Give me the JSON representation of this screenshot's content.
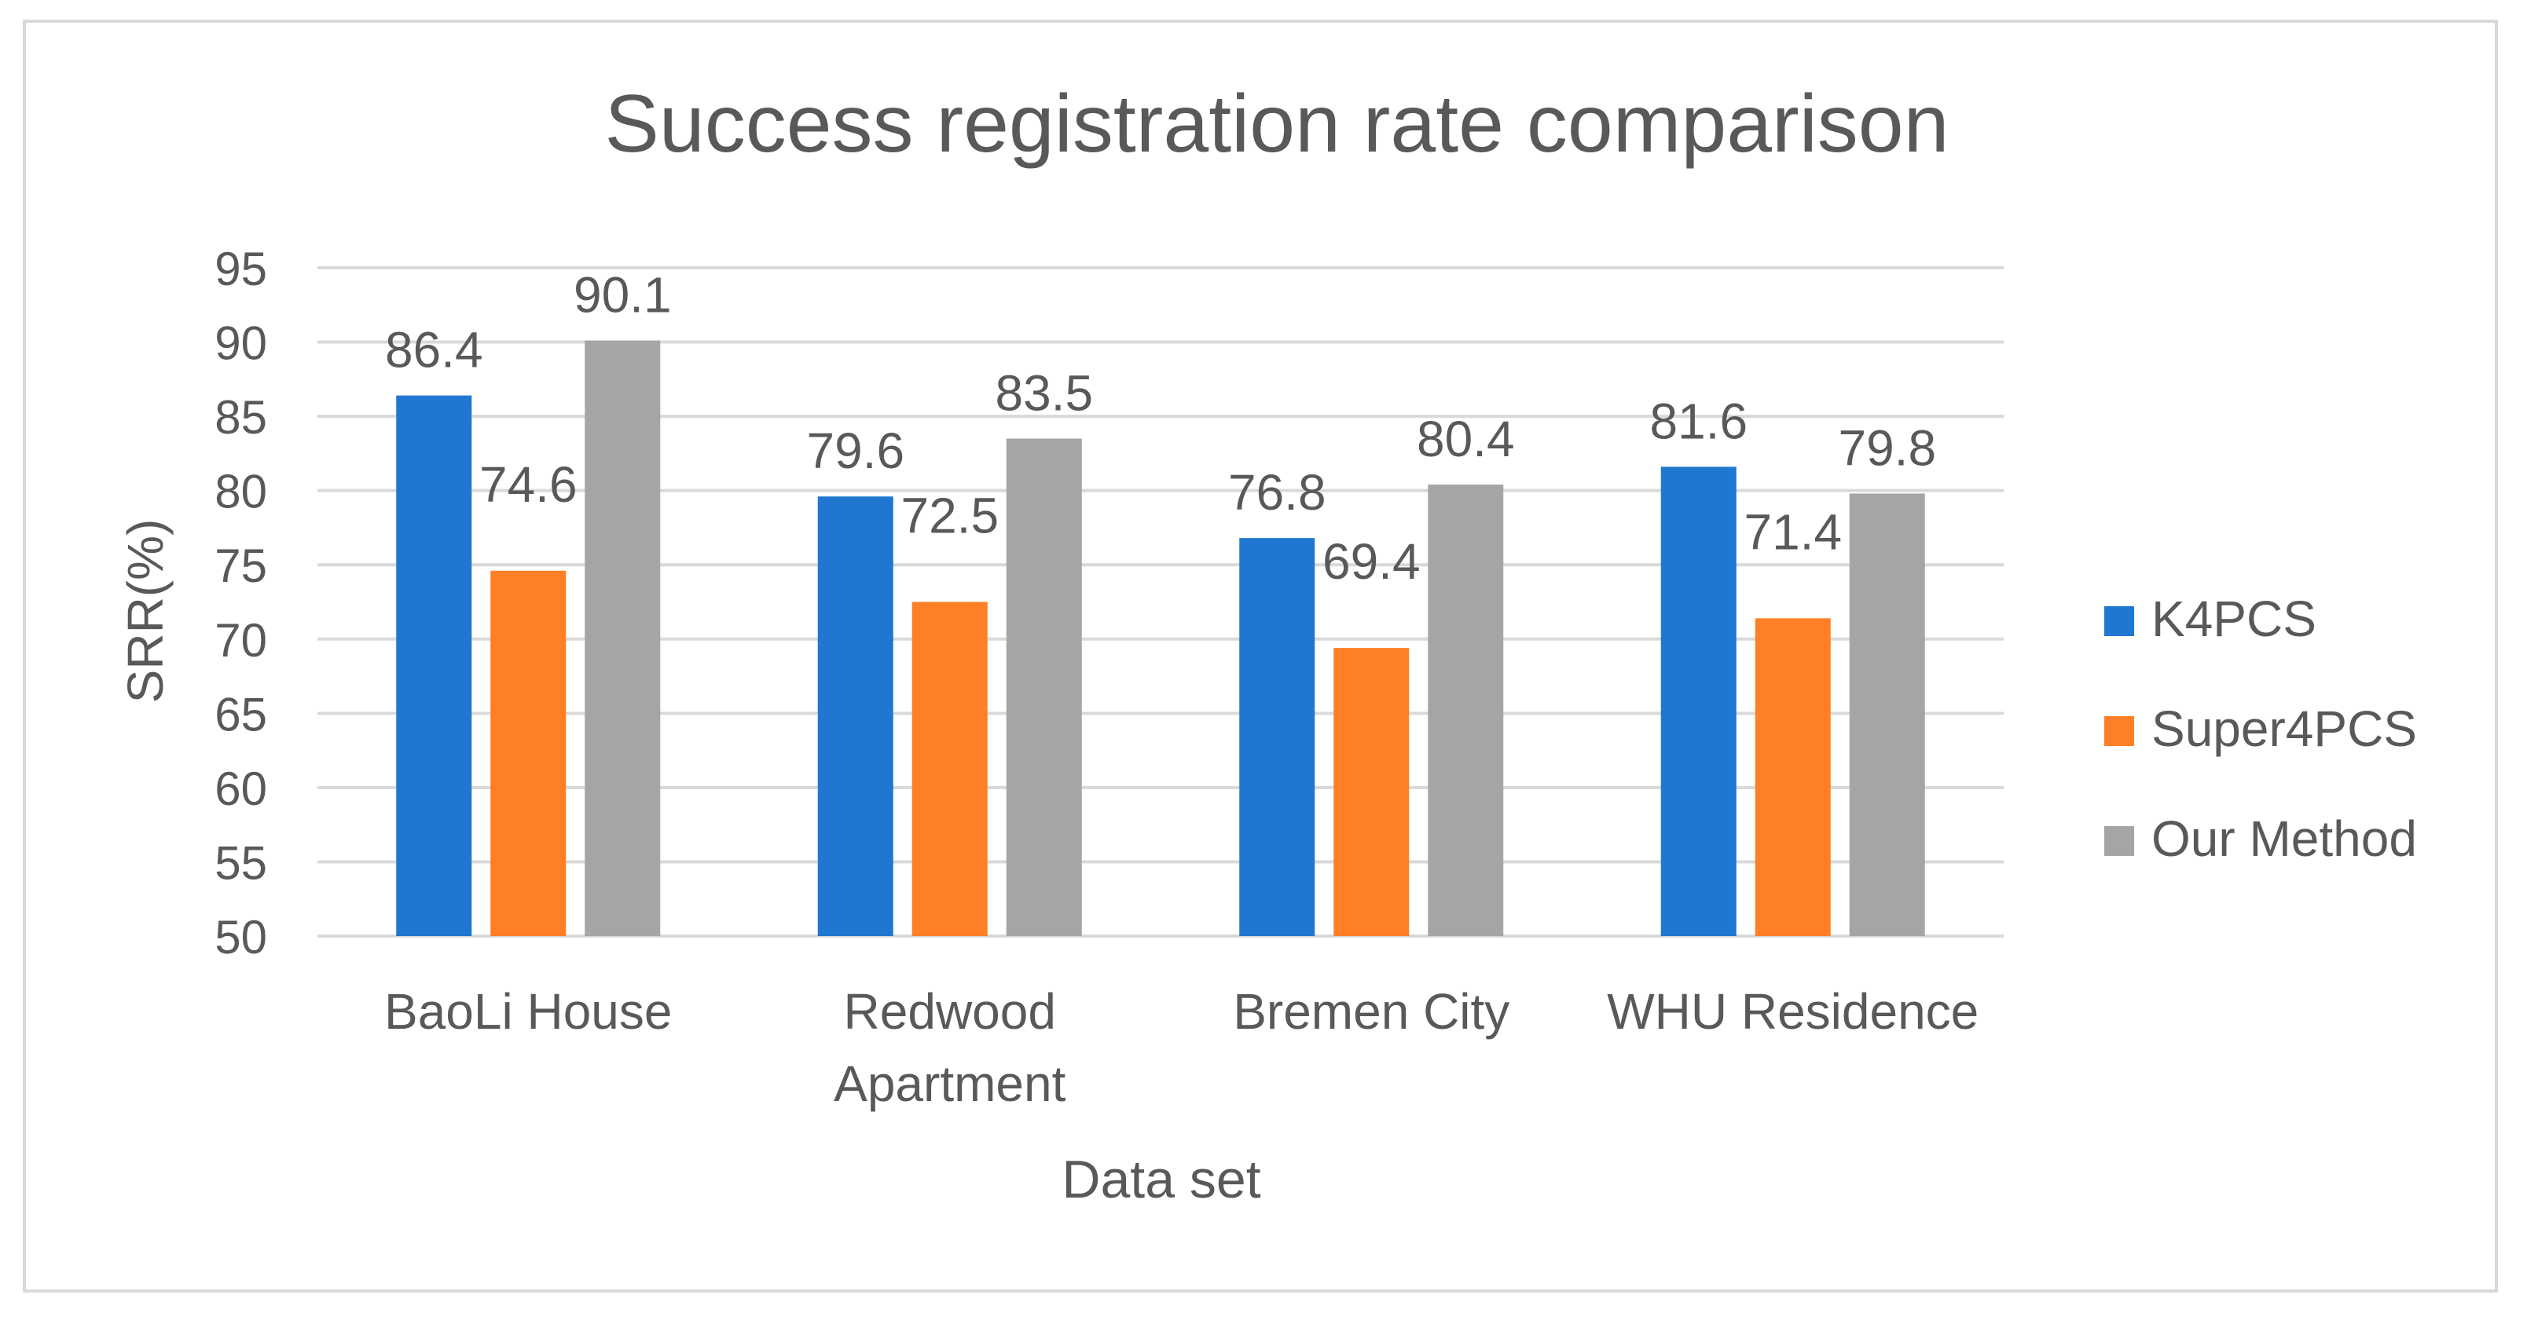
{
  "chart_data": {
    "type": "bar",
    "title": "Success registration rate comparison",
    "xlabel": "Data set",
    "ylabel": "SRR(%)",
    "ylim": [
      50,
      95
    ],
    "yticks": [
      50,
      55,
      60,
      65,
      70,
      75,
      80,
      85,
      90,
      95
    ],
    "grid": true,
    "legend_position": "right",
    "categories": [
      [
        "BaoLi House"
      ],
      [
        "Redwood",
        "Apartment"
      ],
      [
        "Bremen City"
      ],
      [
        "WHU Residence"
      ]
    ],
    "series": [
      {
        "name": "K4PCS",
        "color": "#1f77cf",
        "values": [
          86.4,
          79.6,
          76.8,
          81.6
        ]
      },
      {
        "name": "Super4PCS",
        "color": "#ff7f27",
        "values": [
          74.6,
          72.5,
          69.4,
          71.4
        ]
      },
      {
        "name": "Our Method",
        "color": "#a5a5a5",
        "values": [
          90.1,
          83.5,
          80.4,
          79.8
        ]
      }
    ],
    "colors": {
      "grid": "#d9d9d9",
      "text": "#595959",
      "frame": "#d9d9d9"
    }
  }
}
